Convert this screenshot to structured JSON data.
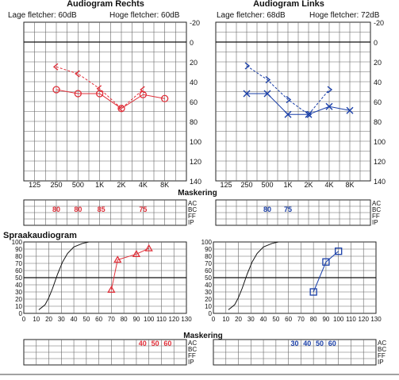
{
  "audiogram_right": {
    "title": "Audiogram Rechts",
    "lage": "Lage fletcher: 60dB",
    "hoge": "Hoge fletcher: 60dB"
  },
  "audiogram_left": {
    "title": "Audiogram Links",
    "lage": "Lage fletcher: 68dB",
    "hoge": "Hoge fletcher: 72dB"
  },
  "freq_labels": [
    "125",
    "250",
    "500",
    "1K",
    "2K",
    "4K",
    "8K"
  ],
  "db_labels": [
    "-20",
    "0",
    "20",
    "40",
    "60",
    "80",
    "100",
    "120",
    "140"
  ],
  "masking_title": "Maskering",
  "masking_rows": [
    "AC",
    "BC",
    "FF",
    "IP"
  ],
  "masking_right_ac": [
    "80",
    "80",
    "85",
    "",
    "75",
    ""
  ],
  "masking_left_ac": [
    "",
    "80",
    "75",
    "",
    "",
    ""
  ],
  "speech_title": "Spraakaudiogram",
  "speech_y_labels": [
    "100",
    "90",
    "80",
    "70",
    "60",
    "50",
    "40",
    "30",
    "20",
    "10",
    "0"
  ],
  "speech_x_labels": [
    "0",
    "10",
    "20",
    "30",
    "40",
    "50",
    "60",
    "70",
    "80",
    "90",
    "100",
    "110",
    "120",
    "130"
  ],
  "speech_masking_title": "Maskering",
  "speech_masking_right_ac": [
    "40",
    "50",
    "60"
  ],
  "speech_masking_left_ac": [
    "30",
    "40",
    "50",
    "60"
  ],
  "colors": {
    "right": "#e0303a",
    "left": "#1a3fa8"
  },
  "chart_data": [
    {
      "type": "line",
      "title": "Audiogram Rechts",
      "x": [
        "250",
        "500",
        "1K",
        "2K",
        "4K",
        "8K"
      ],
      "ylim": [
        140,
        -20
      ],
      "series": [
        {
          "values": [
            48,
            52,
            52,
            67,
            53,
            57
          ]
        },
        {
          "values": [
            25,
            32,
            47,
            67,
            48,
            null
          ]
        }
      ]
    },
    {
      "type": "line",
      "title": "Audiogram Links",
      "x": [
        "250",
        "500",
        "1K",
        "2K",
        "4K",
        "8K"
      ],
      "ylim": [
        140,
        -20
      ],
      "series": [
        {
          "values": [
            52,
            52,
            73,
            73,
            65,
            69
          ]
        },
        {
          "values": [
            24,
            38,
            58,
            73,
            48,
            null
          ]
        }
      ]
    },
    {
      "type": "line",
      "title": "Spraakaudiogram",
      "xlim": [
        0,
        130
      ],
      "ylim": [
        0,
        100
      ],
      "series": [
        {
          "x": [
            70,
            75,
            90,
            100
          ],
          "values": [
            33,
            75,
            83,
            91
          ]
        }
      ]
    },
    {
      "type": "line",
      "xlim": [
        0,
        130
      ],
      "ylim": [
        0,
        100
      ],
      "series": [
        {
          "x": [
            80,
            90,
            100
          ],
          "values": [
            30,
            72,
            87
          ]
        }
      ]
    }
  ]
}
